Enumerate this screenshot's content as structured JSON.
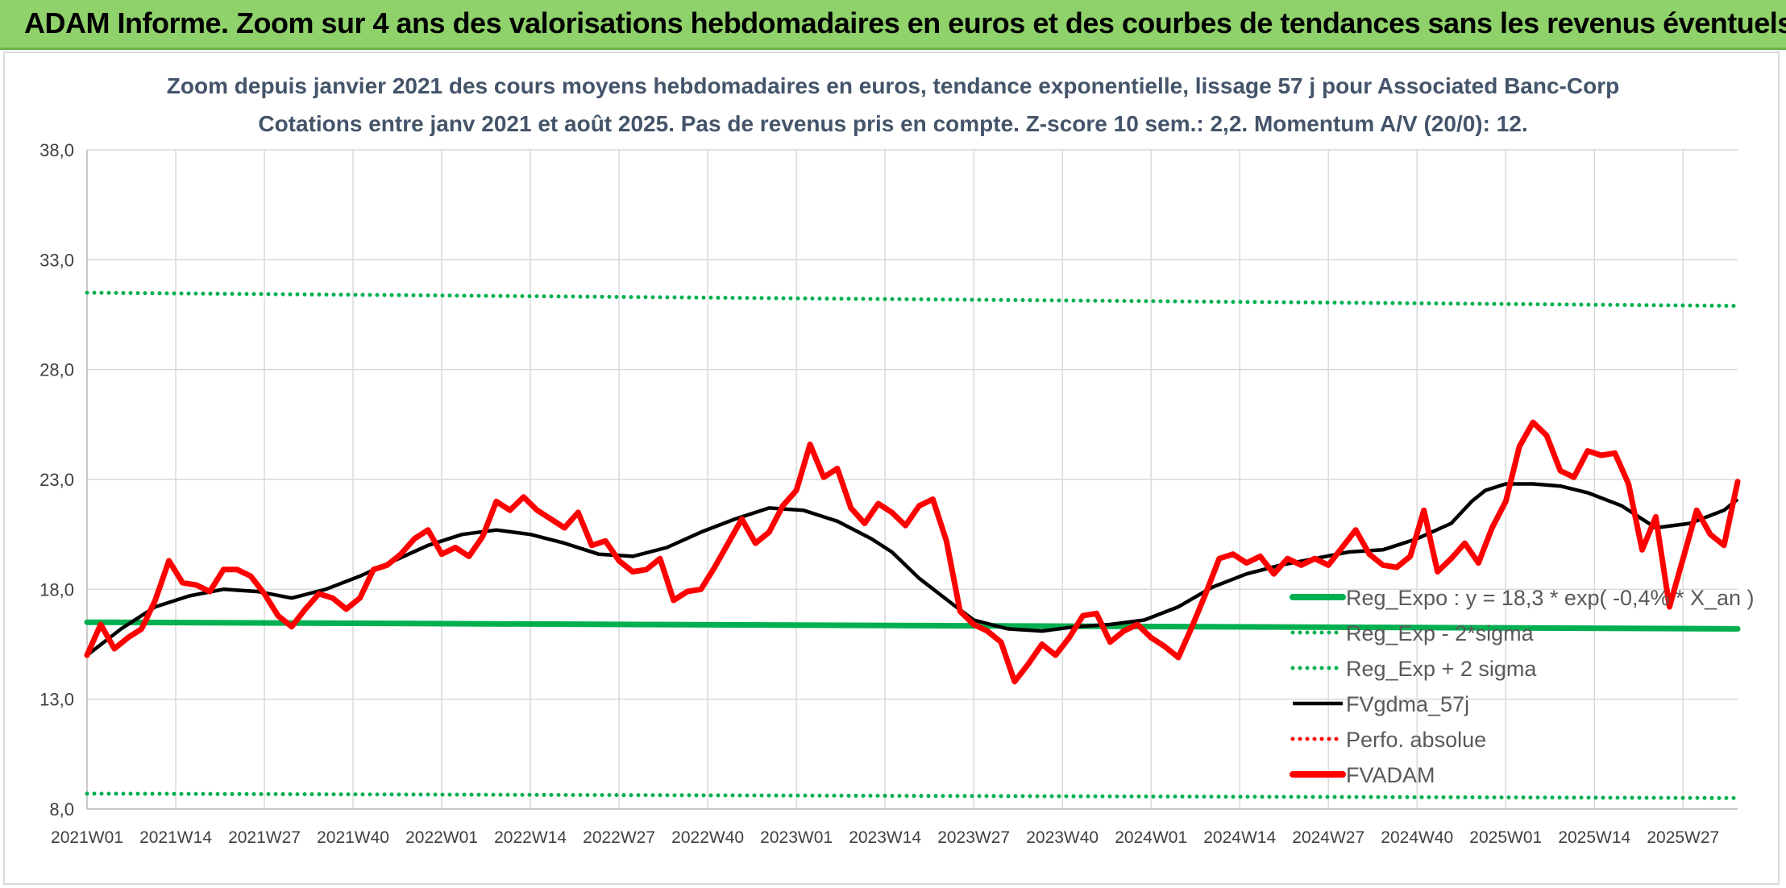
{
  "header": {
    "title": "ADAM Informe. Zoom sur 4 ans des valorisations hebdomadaires en euros et des courbes de tendances sans les revenus éventuels"
  },
  "colors": {
    "header_bg": "#8fd16a",
    "green": "#00b050",
    "red": "#ff0000",
    "black": "#000000",
    "grid": "#d9d9d9",
    "title": "#44546a"
  },
  "chart_data": {
    "type": "line",
    "title_line1": "Zoom depuis janvier 2021 des cours moyens hebdomadaires en euros, tendance exponentielle, lissage 57 j pour Associated Banc-Corp",
    "title_line2": "Cotations entre janv 2021 et août 2025. Pas de revenus pris en compte. Z-score 10 sem.: 2,2. Momentum A/V (20/0): 12.",
    "xlabel": "",
    "ylabel": "",
    "ylim": [
      8.0,
      38.0
    ],
    "yticks": [
      "8,0",
      "13,0",
      "18,0",
      "23,0",
      "28,0",
      "33,0",
      "38,0"
    ],
    "ytick_values": [
      8,
      13,
      18,
      23,
      28,
      33,
      38
    ],
    "xticks": [
      "2021W01",
      "2021W14",
      "2021W27",
      "2021W40",
      "2022W01",
      "2022W14",
      "2022W27",
      "2022W40",
      "2023W01",
      "2023W14",
      "2023W27",
      "2023W40",
      "2024W01",
      "2024W14",
      "2024W27",
      "2024W40",
      "2025W01",
      "2025W14",
      "2025W27"
    ],
    "x_total_weeks": 243,
    "grid": true,
    "legend_position": "bottom-right",
    "series": [
      {
        "name": "Reg_Expo : y = 18,3 * exp( -0,4% * X_an )",
        "style": "solid-thick",
        "color": "#00b050",
        "x": [
          0,
          242
        ],
        "values": [
          16.5,
          16.2
        ]
      },
      {
        "name": "Reg_Exp - 2*sigma",
        "style": "dotted",
        "color": "#00b050",
        "x": [
          0,
          242
        ],
        "values": [
          8.7,
          8.5
        ]
      },
      {
        "name": "Reg_Exp + 2 sigma",
        "style": "dotted",
        "color": "#00b050",
        "x": [
          0,
          242
        ],
        "values": [
          31.5,
          30.9
        ]
      },
      {
        "name": "FVgdma_57j",
        "style": "solid",
        "color": "#000000",
        "x": [
          0,
          5,
          10,
          15,
          20,
          25,
          30,
          35,
          40,
          45,
          50,
          55,
          60,
          65,
          70,
          75,
          80,
          85,
          90,
          95,
          100,
          105,
          110,
          115,
          118,
          122,
          127,
          130,
          135,
          140,
          145,
          150,
          155,
          160,
          165,
          170,
          175,
          180,
          185,
          190,
          195,
          200,
          203,
          205,
          208,
          212,
          216,
          220,
          225,
          230,
          235,
          240,
          242
        ],
        "values": [
          15.0,
          16.2,
          17.2,
          17.7,
          18.0,
          17.9,
          17.6,
          18.0,
          18.6,
          19.3,
          20.0,
          20.5,
          20.7,
          20.5,
          20.1,
          19.6,
          19.5,
          19.9,
          20.6,
          21.2,
          21.7,
          21.6,
          21.1,
          20.3,
          19.7,
          18.5,
          17.3,
          16.6,
          16.2,
          16.1,
          16.3,
          16.4,
          16.6,
          17.2,
          18.1,
          18.7,
          19.1,
          19.4,
          19.7,
          19.8,
          20.3,
          21.0,
          22.0,
          22.5,
          22.8,
          22.8,
          22.7,
          22.4,
          21.8,
          20.8,
          21.0,
          21.6,
          22.1
        ]
      },
      {
        "name": "Perfo. absolue",
        "style": "dotted",
        "color": "#ff0000",
        "x": [],
        "values": []
      },
      {
        "name": "FVADAM",
        "style": "solid-thick",
        "color": "#ff0000",
        "x": [
          0,
          2,
          4,
          6,
          8,
          10,
          12,
          14,
          16,
          18,
          20,
          22,
          24,
          26,
          28,
          30,
          32,
          34,
          36,
          38,
          40,
          42,
          44,
          46,
          48,
          50,
          52,
          54,
          56,
          58,
          60,
          62,
          64,
          66,
          68,
          70,
          72,
          74,
          76,
          78,
          80,
          82,
          84,
          86,
          88,
          90,
          92,
          94,
          96,
          98,
          100,
          102,
          104,
          106,
          108,
          110,
          112,
          114,
          116,
          118,
          120,
          122,
          124,
          126,
          128,
          130,
          132,
          134,
          136,
          138,
          140,
          142,
          144,
          146,
          148,
          150,
          152,
          154,
          156,
          158,
          160,
          162,
          164,
          166,
          168,
          170,
          172,
          174,
          176,
          178,
          180,
          182,
          184,
          186,
          188,
          190,
          192,
          194,
          196,
          198,
          200,
          202,
          204,
          206,
          208,
          210,
          212,
          214,
          216,
          218,
          220,
          222,
          224,
          226,
          228,
          230,
          232,
          234,
          236,
          238,
          240,
          242
        ],
        "values": [
          15.0,
          16.4,
          15.3,
          15.8,
          16.2,
          17.5,
          19.3,
          18.3,
          18.2,
          17.9,
          18.9,
          18.9,
          18.6,
          17.8,
          16.8,
          16.3,
          17.1,
          17.8,
          17.6,
          17.1,
          17.6,
          18.9,
          19.1,
          19.6,
          20.3,
          20.7,
          19.6,
          19.9,
          19.5,
          20.4,
          22.0,
          21.6,
          22.2,
          21.6,
          21.2,
          20.8,
          21.5,
          20.0,
          20.2,
          19.3,
          18.8,
          18.9,
          19.4,
          17.5,
          17.9,
          18.0,
          19.0,
          20.1,
          21.2,
          20.1,
          20.6,
          21.8,
          22.5,
          24.6,
          23.1,
          23.5,
          21.7,
          21.0,
          21.9,
          21.5,
          20.9,
          21.8,
          22.1,
          20.2,
          17.0,
          16.4,
          16.1,
          15.6,
          13.8,
          14.6,
          15.5,
          15.0,
          15.8,
          16.8,
          16.9,
          15.6,
          16.1,
          16.4,
          15.8,
          15.4,
          14.9,
          16.3,
          17.8,
          19.4,
          19.6,
          19.2,
          19.5,
          18.7,
          19.4,
          19.1,
          19.4,
          19.1,
          19.9,
          20.7,
          19.6,
          19.1,
          19.0,
          19.5,
          21.6,
          18.8,
          19.4,
          20.1,
          19.2,
          20.8,
          22.0,
          24.5,
          25.6,
          25.0,
          23.4,
          23.1,
          24.3,
          24.1,
          24.2,
          22.8,
          19.8,
          21.3,
          17.2,
          19.4,
          21.6,
          20.5,
          20.0,
          22.9
        ]
      }
    ]
  }
}
